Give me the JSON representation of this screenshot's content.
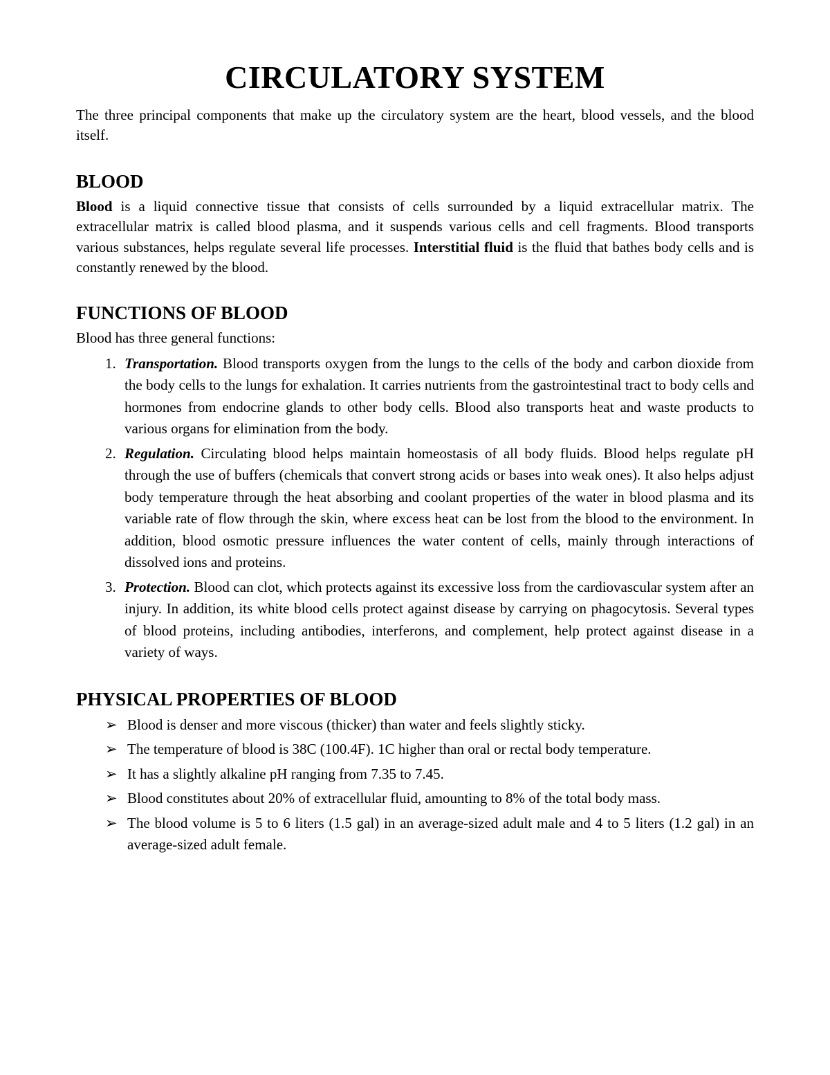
{
  "title": "CIRCULATORY SYSTEM",
  "intro": "The three principal components that make up the circulatory system are the heart, blood vessels, and the blood itself.",
  "section1": {
    "heading": "BLOOD",
    "bold1": "Blood",
    "text1": " is a liquid connective tissue that consists of cells surrounded by a liquid extracellular matrix. The extracellular matrix is called blood plasma, and it suspends various cells and cell fragments. Blood transports various substances, helps regulate several life processes. ",
    "bold2": "Interstitial fluid",
    "text2": " is the fluid that bathes body cells and is constantly renewed by the blood."
  },
  "section2": {
    "heading": "FUNCTIONS OF BLOOD",
    "intro": "Blood has three general functions:",
    "items": [
      {
        "num": "1.",
        "term": "Transportation.",
        "body": " Blood transports oxygen from the lungs to the cells of the body and carbon dioxide from the body cells to the lungs for exhalation. It carries nutrients from the gastrointestinal tract to body cells and hormones from endocrine glands to other body cells. Blood also transports heat and waste products to various organs for elimination from the body."
      },
      {
        "num": "2.",
        "term": "Regulation.",
        "body": " Circulating blood helps maintain homeostasis of all body fluids. Blood helps regulate pH through the use of buffers (chemicals that convert strong acids or bases into weak ones). It also helps adjust body temperature through the heat absorbing and coolant properties of the water in blood plasma and its variable rate of flow through the skin, where excess heat can be lost from the blood to the environment. In addition, blood osmotic pressure influences the water content of cells, mainly through interactions of dissolved ions and proteins."
      },
      {
        "num": "3.",
        "term": "Protection.",
        "body": " Blood can clot, which protects against its excessive loss from the cardiovascular system after an injury. In addition, its white blood cells protect against disease by carrying on phagocytosis. Several types of blood proteins, including antibodies, interferons, and complement, help protect against disease in a variety of ways."
      }
    ]
  },
  "section3": {
    "heading": "PHYSICAL PROPERTIES OF BLOOD",
    "items": [
      "Blood is denser and more viscous (thicker) than water and feels slightly sticky.",
      "The temperature of blood is 38C (100.4F). 1C higher than oral or rectal body temperature.",
      "It has a slightly alkaline pH ranging from 7.35 to 7.45.",
      "Blood constitutes about 20% of extracellular fluid, amounting to 8% of the total body mass.",
      "The blood volume is 5 to 6 liters (1.5 gal) in an average-sized adult male and 4 to 5 liters (1.2 gal) in an average-sized adult female."
    ]
  },
  "arrow": "➢"
}
